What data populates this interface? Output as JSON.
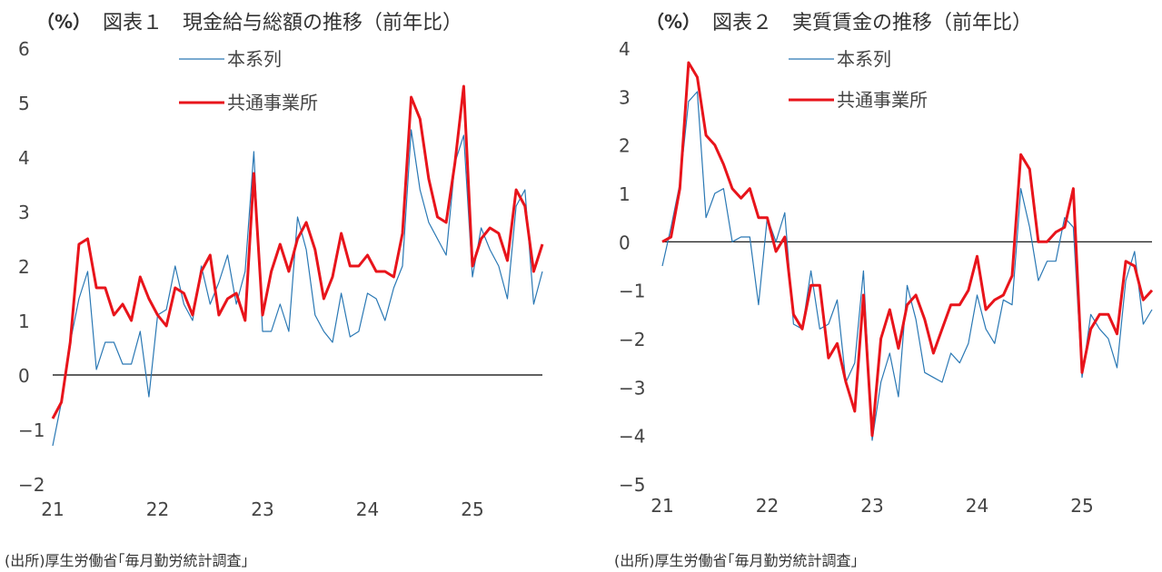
{
  "colors": {
    "main": "#2a78b4",
    "common": "#e8141b",
    "zero_line": "#000000"
  },
  "chart_data": [
    {
      "type": "line",
      "unit_label": "（%）",
      "title": "図表１　現金給与総額の推移（前年比）",
      "xlabel": "",
      "ylabel": "",
      "ylim": [
        -2,
        6
      ],
      "yticks": [
        "−2",
        "−1",
        "0",
        "1",
        "2",
        "3",
        "4",
        "5",
        "6"
      ],
      "xticks": [
        "21",
        "22",
        "23",
        "24",
        "25"
      ],
      "x_start": "2021-01",
      "period": "monthly",
      "legend_position": "top",
      "series": [
        {
          "name": "本系列",
          "color": "#2a78b4",
          "stroke_width": 1.2,
          "values": [
            -1.3,
            -0.5,
            0.6,
            1.4,
            1.9,
            0.1,
            0.6,
            0.6,
            0.2,
            0.2,
            0.8,
            -0.4,
            1.1,
            1.2,
            2.0,
            1.3,
            1.0,
            2.0,
            1.3,
            1.7,
            2.2,
            1.3,
            1.9,
            4.1,
            0.8,
            0.8,
            1.3,
            0.8,
            2.9,
            2.3,
            1.1,
            0.8,
            0.6,
            1.5,
            0.7,
            0.8,
            1.5,
            1.4,
            1.0,
            1.6,
            2.0,
            4.5,
            3.4,
            2.8,
            2.5,
            2.2,
            3.9,
            4.4,
            1.8,
            2.7,
            2.3,
            2.0,
            1.4,
            3.1,
            3.4,
            1.3,
            1.9
          ]
        },
        {
          "name": "共通事業所",
          "color": "#e8141b",
          "stroke_width": 3,
          "values": [
            -0.8,
            -0.5,
            0.6,
            2.4,
            2.5,
            1.6,
            1.6,
            1.1,
            1.3,
            1.0,
            1.8,
            1.4,
            1.1,
            0.9,
            1.6,
            1.5,
            1.1,
            1.9,
            2.2,
            1.1,
            1.4,
            1.5,
            1.0,
            3.7,
            1.1,
            1.9,
            2.4,
            1.9,
            2.5,
            2.8,
            2.3,
            1.4,
            1.8,
            2.6,
            2.0,
            2.0,
            2.2,
            1.9,
            1.9,
            1.8,
            2.6,
            5.1,
            4.7,
            3.6,
            2.9,
            2.8,
            3.9,
            5.3,
            2.0,
            2.5,
            2.7,
            2.6,
            2.1,
            3.4,
            3.1,
            1.9,
            2.4
          ]
        }
      ],
      "source": "(出所)厚生労働省｢毎月勤労統計調査｣"
    },
    {
      "type": "line",
      "unit_label": "（%）",
      "title": "図表２　実質賃金の推移（前年比）",
      "xlabel": "",
      "ylabel": "",
      "ylim": [
        -5,
        4
      ],
      "yticks": [
        "−5",
        "−4",
        "−3",
        "−2",
        "−1",
        "0",
        "1",
        "2",
        "3",
        "4"
      ],
      "xticks": [
        "21",
        "22",
        "23",
        "24",
        "25"
      ],
      "x_start": "2021-01",
      "period": "monthly",
      "legend_position": "top",
      "series": [
        {
          "name": "本系列",
          "color": "#2a78b4",
          "stroke_width": 1.2,
          "values": [
            -0.5,
            0.3,
            1.2,
            2.9,
            3.1,
            0.5,
            1.0,
            1.1,
            0.0,
            0.1,
            0.1,
            -1.3,
            0.5,
            0.0,
            0.6,
            -1.7,
            -1.8,
            -0.6,
            -1.8,
            -1.7,
            -1.2,
            -2.9,
            -2.5,
            -0.6,
            -4.1,
            -2.9,
            -2.3,
            -3.2,
            -0.9,
            -1.6,
            -2.7,
            -2.8,
            -2.9,
            -2.3,
            -2.5,
            -2.1,
            -1.1,
            -1.8,
            -2.1,
            -1.2,
            -1.3,
            1.1,
            0.3,
            -0.8,
            -0.4,
            -0.4,
            0.5,
            0.3,
            -2.8,
            -1.5,
            -1.8,
            -2.0,
            -2.6,
            -0.8,
            -0.2,
            -1.7,
            -1.4
          ]
        },
        {
          "name": "共通事業所",
          "color": "#e8141b",
          "stroke_width": 3,
          "values": [
            0.0,
            0.1,
            1.1,
            3.7,
            3.4,
            2.2,
            2.0,
            1.6,
            1.1,
            0.9,
            1.1,
            0.5,
            0.5,
            -0.2,
            0.1,
            -1.5,
            -1.8,
            -0.9,
            -0.9,
            -2.4,
            -2.1,
            -2.9,
            -3.5,
            -1.1,
            -4.0,
            -2.0,
            -1.4,
            -2.2,
            -1.3,
            -1.1,
            -1.6,
            -2.3,
            -1.8,
            -1.3,
            -1.3,
            -1.0,
            -0.3,
            -1.4,
            -1.2,
            -1.1,
            -0.7,
            1.8,
            1.5,
            0.0,
            0.0,
            0.2,
            0.3,
            1.1,
            -2.7,
            -1.8,
            -1.5,
            -1.5,
            -1.9,
            -0.4,
            -0.5,
            -1.2,
            -1.0
          ]
        }
      ],
      "source": "(出所)厚生労働省｢毎月勤労統計調査｣"
    }
  ]
}
